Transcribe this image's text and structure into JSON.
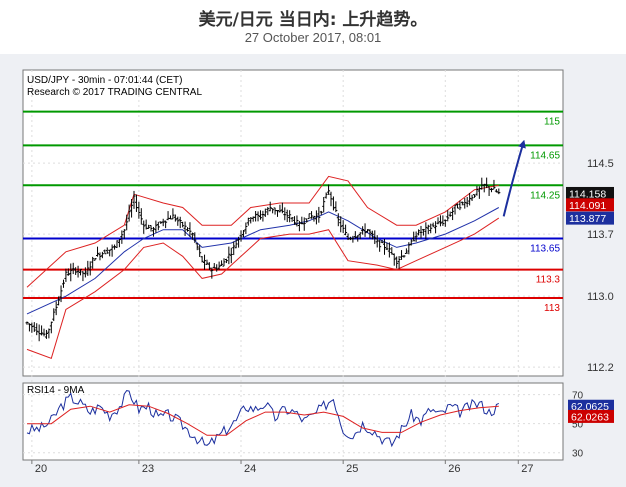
{
  "header": {
    "title": "美元/日元 当日内: 上升趋势。",
    "subtitle": "27 October 2017, 08:01"
  },
  "chart_data": {
    "type": "candlestick",
    "title": "USD/JPY - 30min - 07:01:44 (CET)",
    "subtitle": "Research © 2017 TRADING CENTRAL",
    "ylim": [
      112.1,
      115.55
    ],
    "y_ticks": [
      {
        "label": "112.2",
        "value": 112.2
      },
      {
        "label": "113.0",
        "value": 113.0
      },
      {
        "label": "113.7",
        "value": 113.7
      },
      {
        "label": "114.5",
        "value": 114.5
      }
    ],
    "x_ticks": [
      "20",
      "23",
      "24",
      "25",
      "26",
      "27"
    ],
    "levels": [
      {
        "label": "115",
        "value": 115.08,
        "color": "#009900"
      },
      {
        "label": "114.65",
        "value": 114.7,
        "color": "#009900"
      },
      {
        "label": "114.25",
        "value": 114.25,
        "color": "#009900"
      },
      {
        "label": "113.65",
        "value": 113.65,
        "color": "#0000cc"
      },
      {
        "label": "113.3",
        "value": 113.3,
        "color": "#dd0000"
      },
      {
        "label": "113",
        "value": 112.98,
        "color": "#dd0000"
      }
    ],
    "price_tags": [
      {
        "label": "114.158",
        "value": 114.158,
        "bg": "#111111",
        "fg": "#ffffff"
      },
      {
        "label": "114.091",
        "value": 114.03,
        "bg": "#cc0000",
        "fg": "#ffffff"
      },
      {
        "label": "113.877",
        "value": 113.88,
        "bg": "#1c2f9e",
        "fg": "#ffffff"
      }
    ],
    "price_path": [
      [
        0,
        112.7
      ],
      [
        8,
        112.55
      ],
      [
        12,
        112.88
      ],
      [
        16,
        113.25
      ],
      [
        20,
        113.3
      ],
      [
        24,
        113.25
      ],
      [
        28,
        113.45
      ],
      [
        32,
        113.5
      ],
      [
        36,
        113.55
      ],
      [
        40,
        113.75
      ],
      [
        44,
        114.1
      ],
      [
        48,
        113.8
      ],
      [
        52,
        113.75
      ],
      [
        56,
        113.85
      ],
      [
        60,
        113.9
      ],
      [
        64,
        113.8
      ],
      [
        68,
        113.7
      ],
      [
        72,
        113.4
      ],
      [
        76,
        113.3
      ],
      [
        80,
        113.35
      ],
      [
        84,
        113.5
      ],
      [
        88,
        113.7
      ],
      [
        92,
        113.9
      ],
      [
        96,
        113.9
      ],
      [
        100,
        114.0
      ],
      [
        104,
        113.95
      ],
      [
        108,
        113.9
      ],
      [
        112,
        113.8
      ],
      [
        116,
        113.9
      ],
      [
        120,
        113.9
      ],
      [
        124,
        114.2
      ],
      [
        128,
        113.85
      ],
      [
        132,
        113.65
      ],
      [
        136,
        113.7
      ],
      [
        140,
        113.75
      ],
      [
        144,
        113.6
      ],
      [
        148,
        113.55
      ],
      [
        152,
        113.4
      ],
      [
        156,
        113.5
      ],
      [
        160,
        113.7
      ],
      [
        164,
        113.75
      ],
      [
        168,
        113.8
      ],
      [
        172,
        113.85
      ],
      [
        176,
        114.0
      ],
      [
        180,
        114.05
      ],
      [
        184,
        114.15
      ],
      [
        188,
        114.25
      ],
      [
        192,
        114.2
      ],
      [
        194,
        114.158
      ]
    ],
    "forecast_path": [
      [
        196,
        113.9
      ],
      [
        200,
        114.35
      ],
      [
        204,
        114.72
      ]
    ],
    "upper_band_path": [
      [
        0,
        113.1
      ],
      [
        16,
        113.5
      ],
      [
        28,
        113.6
      ],
      [
        40,
        113.8
      ],
      [
        44,
        114.15
      ],
      [
        56,
        114.05
      ],
      [
        64,
        114.0
      ],
      [
        72,
        113.8
      ],
      [
        84,
        113.8
      ],
      [
        92,
        114.0
      ],
      [
        104,
        114.05
      ],
      [
        116,
        114.05
      ],
      [
        124,
        114.35
      ],
      [
        132,
        114.3
      ],
      [
        140,
        114.0
      ],
      [
        152,
        113.8
      ],
      [
        160,
        113.8
      ],
      [
        172,
        113.95
      ],
      [
        184,
        114.2
      ],
      [
        194,
        114.25
      ]
    ],
    "lower_band_path": [
      [
        0,
        112.4
      ],
      [
        10,
        112.3
      ],
      [
        16,
        112.85
      ],
      [
        28,
        113.05
      ],
      [
        40,
        113.3
      ],
      [
        48,
        113.55
      ],
      [
        56,
        113.6
      ],
      [
        64,
        113.45
      ],
      [
        72,
        113.2
      ],
      [
        80,
        113.25
      ],
      [
        88,
        113.45
      ],
      [
        96,
        113.65
      ],
      [
        108,
        113.7
      ],
      [
        116,
        113.7
      ],
      [
        124,
        113.75
      ],
      [
        132,
        113.4
      ],
      [
        144,
        113.35
      ],
      [
        152,
        113.3
      ],
      [
        160,
        113.4
      ],
      [
        172,
        113.55
      ],
      [
        184,
        113.7
      ],
      [
        194,
        113.88
      ]
    ],
    "ma_path": [
      [
        0,
        112.8
      ],
      [
        16,
        113.0
      ],
      [
        28,
        113.2
      ],
      [
        40,
        113.5
      ],
      [
        48,
        113.65
      ],
      [
        56,
        113.75
      ],
      [
        64,
        113.75
      ],
      [
        72,
        113.55
      ],
      [
        84,
        113.6
      ],
      [
        96,
        113.75
      ],
      [
        108,
        113.8
      ],
      [
        116,
        113.85
      ],
      [
        124,
        113.95
      ],
      [
        132,
        113.85
      ],
      [
        144,
        113.65
      ],
      [
        152,
        113.55
      ],
      [
        160,
        113.6
      ],
      [
        172,
        113.7
      ],
      [
        184,
        113.85
      ],
      [
        194,
        114.0
      ]
    ],
    "indicator": {
      "label": "RSI14 - 9MA",
      "ylim": [
        25,
        78
      ],
      "y_ticks": [
        {
          "label": "70",
          "value": 70
        },
        {
          "label": "50",
          "value": 50
        },
        {
          "label": "30",
          "value": 30
        }
      ],
      "tags": [
        {
          "label": "62.0625",
          "value": 62.0,
          "bg": "#1c2f9e",
          "fg": "#ffffff"
        },
        {
          "label": "62.0263",
          "value": 55.0,
          "bg": "#cc0000",
          "fg": "#ffffff"
        }
      ],
      "rsi_path": [
        [
          0,
          45
        ],
        [
          6,
          47
        ],
        [
          10,
          52
        ],
        [
          14,
          62
        ],
        [
          18,
          68
        ],
        [
          22,
          64
        ],
        [
          26,
          58
        ],
        [
          30,
          62
        ],
        [
          34,
          56
        ],
        [
          38,
          62
        ],
        [
          42,
          72
        ],
        [
          46,
          60
        ],
        [
          50,
          62
        ],
        [
          54,
          54
        ],
        [
          58,
          56
        ],
        [
          62,
          52
        ],
        [
          66,
          46
        ],
        [
          70,
          40
        ],
        [
          74,
          34
        ],
        [
          78,
          40
        ],
        [
          82,
          46
        ],
        [
          86,
          52
        ],
        [
          90,
          62
        ],
        [
          94,
          60
        ],
        [
          98,
          64
        ],
        [
          102,
          54
        ],
        [
          106,
          60
        ],
        [
          110,
          58
        ],
        [
          114,
          52
        ],
        [
          118,
          56
        ],
        [
          122,
          62
        ],
        [
          126,
          68
        ],
        [
          130,
          46
        ],
        [
          134,
          42
        ],
        [
          138,
          50
        ],
        [
          142,
          46
        ],
        [
          146,
          40
        ],
        [
          150,
          36
        ],
        [
          154,
          46
        ],
        [
          158,
          56
        ],
        [
          162,
          52
        ],
        [
          166,
          60
        ],
        [
          170,
          56
        ],
        [
          174,
          62
        ],
        [
          178,
          58
        ],
        [
          182,
          62
        ],
        [
          186,
          64
        ],
        [
          190,
          58
        ],
        [
          194,
          62
        ]
      ],
      "ma_path": [
        [
          0,
          50
        ],
        [
          10,
          50
        ],
        [
          18,
          60
        ],
        [
          26,
          62
        ],
        [
          34,
          58
        ],
        [
          42,
          63
        ],
        [
          50,
          62
        ],
        [
          58,
          57
        ],
        [
          66,
          50
        ],
        [
          74,
          42
        ],
        [
          82,
          42
        ],
        [
          90,
          52
        ],
        [
          98,
          58
        ],
        [
          106,
          58
        ],
        [
          114,
          56
        ],
        [
          122,
          58
        ],
        [
          130,
          55
        ],
        [
          138,
          47
        ],
        [
          146,
          44
        ],
        [
          154,
          44
        ],
        [
          162,
          51
        ],
        [
          170,
          56
        ],
        [
          178,
          59
        ],
        [
          186,
          61
        ],
        [
          194,
          62
        ]
      ]
    }
  }
}
